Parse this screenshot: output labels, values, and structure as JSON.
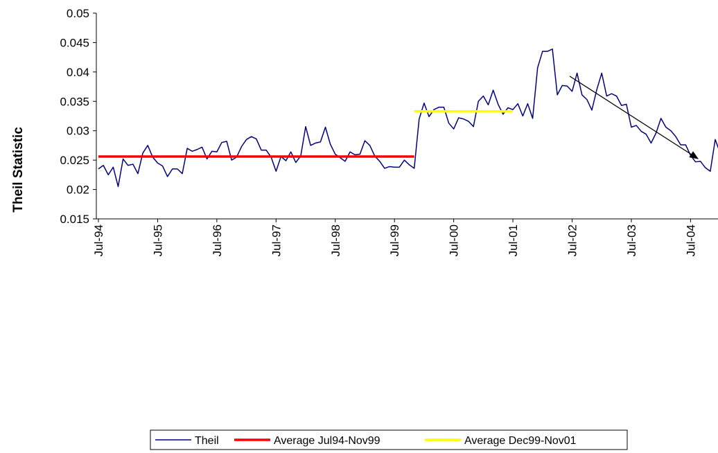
{
  "chart_data": {
    "type": "line",
    "y_label": "Theil Statistic",
    "ylim": [
      0.015,
      0.05
    ],
    "yticks": [
      0.015,
      0.02,
      0.025,
      0.03,
      0.035,
      0.04,
      0.045,
      0.05
    ],
    "categories": [
      "Jul-94",
      null,
      null,
      null,
      null,
      null,
      null,
      null,
      null,
      null,
      null,
      null,
      "Jul-95",
      null,
      null,
      null,
      null,
      null,
      null,
      null,
      null,
      null,
      null,
      null,
      "Jul-96",
      null,
      null,
      null,
      null,
      null,
      null,
      null,
      null,
      null,
      null,
      null,
      "Jul-97",
      null,
      null,
      null,
      null,
      null,
      null,
      null,
      null,
      null,
      null,
      null,
      "Jul-98",
      null,
      null,
      null,
      null,
      null,
      null,
      null,
      null,
      null,
      null,
      null,
      "Jul-99",
      null,
      null,
      null,
      null,
      null,
      null,
      null,
      null,
      null,
      null,
      null,
      "Jul-00",
      null,
      null,
      null,
      null,
      null,
      null,
      null,
      null,
      null,
      null,
      null,
      "Jul-01",
      null,
      null,
      null,
      null,
      null,
      null,
      null,
      null,
      null,
      null,
      null,
      "Jul-02",
      null,
      null,
      null,
      null,
      null,
      null,
      null,
      null,
      null,
      null,
      null,
      "Jul-03",
      null,
      null,
      null,
      null,
      null,
      null,
      null,
      null,
      null,
      null,
      null,
      "Jul-04",
      null,
      null,
      null,
      null,
      null,
      null
    ],
    "series": [
      {
        "name": "Theil",
        "color": "#000080",
        "values": [
          0.0235,
          0.0241,
          0.0225,
          0.0238,
          0.0205,
          0.0252,
          0.0241,
          0.0243,
          0.0227,
          0.0262,
          0.0275,
          0.0255,
          0.0245,
          0.024,
          0.0222,
          0.0235,
          0.0235,
          0.0227,
          0.027,
          0.0265,
          0.0268,
          0.0272,
          0.0252,
          0.0265,
          0.0264,
          0.028,
          0.0282,
          0.025,
          0.0255,
          0.0273,
          0.0285,
          0.029,
          0.0286,
          0.0267,
          0.0267,
          0.0255,
          0.0231,
          0.0256,
          0.0249,
          0.0264,
          0.0246,
          0.0257,
          0.0307,
          0.0275,
          0.0279,
          0.0281,
          0.0306,
          0.0277,
          0.026,
          0.0254,
          0.0248,
          0.0264,
          0.0259,
          0.026,
          0.0283,
          0.0275,
          0.0257,
          0.0248,
          0.0236,
          0.0239,
          0.0238,
          0.0238,
          0.025,
          0.0242,
          0.0236,
          0.032,
          0.0347,
          0.0324,
          0.0336,
          0.034,
          0.034,
          0.0313,
          0.0303,
          0.0322,
          0.032,
          0.0316,
          0.0307,
          0.035,
          0.0359,
          0.0344,
          0.0369,
          0.0345,
          0.0328,
          0.0339,
          0.0336,
          0.0346,
          0.0325,
          0.0346,
          0.0321,
          0.0407,
          0.0435,
          0.0435,
          0.0439,
          0.0361,
          0.0377,
          0.0376,
          0.0367,
          0.0398,
          0.0361,
          0.0353,
          0.0335,
          0.037,
          0.0398,
          0.0359,
          0.0363,
          0.0359,
          0.0343,
          0.0345,
          0.0306,
          0.0309,
          0.0299,
          0.0294,
          0.0279,
          0.0296,
          0.0321,
          0.0306,
          0.03,
          0.029,
          0.0276,
          0.0276,
          0.0258,
          0.0247,
          0.0248,
          0.0237,
          0.0231,
          0.0285,
          0.0262
        ]
      },
      {
        "name": "Average Jul94-Nov99",
        "color": "#ff0000",
        "values": [
          0.0256,
          0.0256,
          0.0256,
          0.0256,
          0.0256,
          0.0256,
          0.0256,
          0.0256,
          0.0256,
          0.0256,
          0.0256,
          0.0256,
          0.0256,
          0.0256,
          0.0256,
          0.0256,
          0.0256,
          0.0256,
          0.0256,
          0.0256,
          0.0256,
          0.0256,
          0.0256,
          0.0256,
          0.0256,
          0.0256,
          0.0256,
          0.0256,
          0.0256,
          0.0256,
          0.0256,
          0.0256,
          0.0256,
          0.0256,
          0.0256,
          0.0256,
          0.0256,
          0.0256,
          0.0256,
          0.0256,
          0.0256,
          0.0256,
          0.0256,
          0.0256,
          0.0256,
          0.0256,
          0.0256,
          0.0256,
          0.0256,
          0.0256,
          0.0256,
          0.0256,
          0.0256,
          0.0256,
          0.0256,
          0.0256,
          0.0256,
          0.0256,
          0.0256,
          0.0256,
          0.0256,
          0.0256,
          0.0256,
          0.0256,
          0.0256,
          null,
          null,
          null,
          null,
          null,
          null,
          null,
          null,
          null,
          null,
          null,
          null,
          null,
          null,
          null,
          null,
          null,
          null,
          null,
          null,
          null,
          null,
          null,
          null,
          null,
          null,
          null,
          null,
          null,
          null,
          null,
          null,
          null,
          null,
          null,
          null,
          null,
          null,
          null,
          null,
          null,
          null,
          null,
          null,
          null,
          null,
          null,
          null,
          null,
          null,
          null,
          null,
          null,
          null,
          null,
          null,
          null,
          null,
          null,
          null,
          null,
          null
        ]
      },
      {
        "name": "Average Dec99-Nov01",
        "color": "#ffff00",
        "values": [
          null,
          null,
          null,
          null,
          null,
          null,
          null,
          null,
          null,
          null,
          null,
          null,
          null,
          null,
          null,
          null,
          null,
          null,
          null,
          null,
          null,
          null,
          null,
          null,
          null,
          null,
          null,
          null,
          null,
          null,
          null,
          null,
          null,
          null,
          null,
          null,
          null,
          null,
          null,
          null,
          null,
          null,
          null,
          null,
          null,
          null,
          null,
          null,
          null,
          null,
          null,
          null,
          null,
          null,
          null,
          null,
          null,
          null,
          null,
          null,
          null,
          null,
          null,
          null,
          0.0333,
          0.0333,
          0.0333,
          0.0333,
          0.0333,
          0.0333,
          0.0333,
          0.0333,
          0.0333,
          0.0333,
          0.0333,
          0.0333,
          0.0333,
          0.0333,
          0.0333,
          0.0333,
          0.0333,
          0.0333,
          0.0333,
          0.0333,
          0.0333,
          null,
          null,
          null,
          null,
          null,
          null,
          null,
          null,
          null,
          null,
          null,
          null,
          null,
          null,
          null,
          null,
          null,
          null,
          null,
          null,
          null,
          null,
          null,
          null,
          null,
          null,
          null,
          null,
          null,
          null,
          null,
          null,
          null,
          null,
          null,
          null,
          null,
          null,
          null,
          null,
          null,
          null
        ]
      }
    ]
  }
}
